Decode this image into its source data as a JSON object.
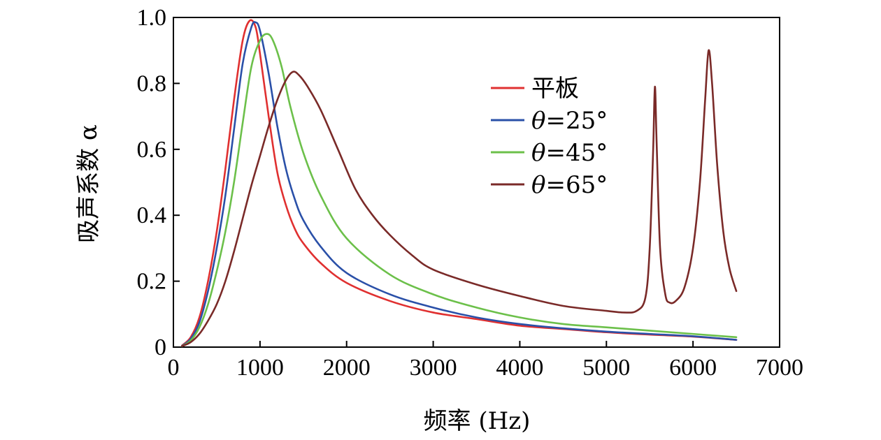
{
  "chart_data": {
    "type": "line",
    "xlabel": "频率 (Hz)",
    "ylabel": "吸声系数 α",
    "xlim": [
      0,
      7000
    ],
    "ylim": [
      0,
      1.0
    ],
    "xticks": [
      0,
      1000,
      2000,
      3000,
      4000,
      5000,
      6000,
      7000
    ],
    "xtick_labels": [
      "0",
      "1000",
      "2000",
      "3000",
      "4000",
      "5000",
      "6000",
      "7000"
    ],
    "yticks": [
      0,
      0.2,
      0.4,
      0.6,
      0.8,
      1.0
    ],
    "ytick_labels": [
      "0",
      "0.2",
      "0.4",
      "0.6",
      "0.8",
      "1.0"
    ],
    "grid": false,
    "legend_position": "top-right",
    "series": [
      {
        "name": "平板",
        "legend_label": {
          "prefix": "",
          "rest": "平板"
        },
        "color": "#e03030",
        "points": [
          [
            100,
            0.005
          ],
          [
            200,
            0.03
          ],
          [
            300,
            0.09
          ],
          [
            400,
            0.2
          ],
          [
            500,
            0.35
          ],
          [
            600,
            0.54
          ],
          [
            700,
            0.75
          ],
          [
            800,
            0.93
          ],
          [
            880,
            0.99
          ],
          [
            950,
            0.97
          ],
          [
            1000,
            0.89
          ],
          [
            1100,
            0.7
          ],
          [
            1200,
            0.53
          ],
          [
            1300,
            0.43
          ],
          [
            1400,
            0.36
          ],
          [
            1500,
            0.315
          ],
          [
            1700,
            0.255
          ],
          [
            2000,
            0.195
          ],
          [
            2500,
            0.14
          ],
          [
            3000,
            0.105
          ],
          [
            3500,
            0.085
          ],
          [
            4000,
            0.065
          ],
          [
            4500,
            0.055
          ],
          [
            5000,
            0.045
          ],
          [
            5500,
            0.038
          ],
          [
            6000,
            0.032
          ],
          [
            6500,
            0.022
          ]
        ]
      },
      {
        "name": "θ=25°",
        "legend_label": {
          "prefix": "θ",
          "rest": "=25°"
        },
        "color": "#2a50a8",
        "points": [
          [
            100,
            0.004
          ],
          [
            200,
            0.025
          ],
          [
            300,
            0.075
          ],
          [
            400,
            0.17
          ],
          [
            500,
            0.3
          ],
          [
            600,
            0.46
          ],
          [
            700,
            0.66
          ],
          [
            800,
            0.86
          ],
          [
            900,
            0.97
          ],
          [
            950,
            0.985
          ],
          [
            1000,
            0.96
          ],
          [
            1100,
            0.83
          ],
          [
            1200,
            0.67
          ],
          [
            1300,
            0.54
          ],
          [
            1400,
            0.45
          ],
          [
            1500,
            0.385
          ],
          [
            1700,
            0.305
          ],
          [
            2000,
            0.225
          ],
          [
            2500,
            0.16
          ],
          [
            3000,
            0.12
          ],
          [
            3500,
            0.09
          ],
          [
            4000,
            0.07
          ],
          [
            4500,
            0.057
          ],
          [
            5000,
            0.047
          ],
          [
            5500,
            0.04
          ],
          [
            6000,
            0.033
          ],
          [
            6500,
            0.022
          ]
        ]
      },
      {
        "name": "θ=45°",
        "legend_label": {
          "prefix": "θ",
          "rest": "=45°"
        },
        "color": "#6cc04a",
        "points": [
          [
            100,
            0.003
          ],
          [
            200,
            0.02
          ],
          [
            300,
            0.06
          ],
          [
            400,
            0.13
          ],
          [
            500,
            0.23
          ],
          [
            600,
            0.35
          ],
          [
            700,
            0.5
          ],
          [
            800,
            0.68
          ],
          [
            900,
            0.85
          ],
          [
            1000,
            0.93
          ],
          [
            1080,
            0.95
          ],
          [
            1150,
            0.93
          ],
          [
            1250,
            0.85
          ],
          [
            1350,
            0.73
          ],
          [
            1500,
            0.59
          ],
          [
            1700,
            0.46
          ],
          [
            2000,
            0.33
          ],
          [
            2500,
            0.22
          ],
          [
            3000,
            0.16
          ],
          [
            3500,
            0.12
          ],
          [
            4000,
            0.09
          ],
          [
            4500,
            0.07
          ],
          [
            5000,
            0.06
          ],
          [
            5500,
            0.05
          ],
          [
            6000,
            0.04
          ],
          [
            6500,
            0.03
          ]
        ]
      },
      {
        "name": "θ=65°",
        "legend_label": {
          "prefix": "θ",
          "rest": "=65°"
        },
        "color": "#7a2a28",
        "points": [
          [
            100,
            0.003
          ],
          [
            200,
            0.015
          ],
          [
            300,
            0.04
          ],
          [
            400,
            0.08
          ],
          [
            500,
            0.13
          ],
          [
            600,
            0.2
          ],
          [
            700,
            0.29
          ],
          [
            800,
            0.39
          ],
          [
            900,
            0.49
          ],
          [
            1000,
            0.58
          ],
          [
            1100,
            0.67
          ],
          [
            1200,
            0.75
          ],
          [
            1300,
            0.81
          ],
          [
            1380,
            0.835
          ],
          [
            1450,
            0.825
          ],
          [
            1550,
            0.79
          ],
          [
            1700,
            0.72
          ],
          [
            1900,
            0.6
          ],
          [
            2100,
            0.48
          ],
          [
            2300,
            0.4
          ],
          [
            2500,
            0.34
          ],
          [
            2750,
            0.28
          ],
          [
            3000,
            0.235
          ],
          [
            3500,
            0.19
          ],
          [
            4000,
            0.155
          ],
          [
            4500,
            0.125
          ],
          [
            5000,
            0.11
          ],
          [
            5200,
            0.105
          ],
          [
            5350,
            0.11
          ],
          [
            5450,
            0.15
          ],
          [
            5500,
            0.3
          ],
          [
            5540,
            0.6
          ],
          [
            5560,
            0.79
          ],
          [
            5580,
            0.62
          ],
          [
            5620,
            0.3
          ],
          [
            5680,
            0.16
          ],
          [
            5730,
            0.135
          ],
          [
            5800,
            0.14
          ],
          [
            5900,
            0.18
          ],
          [
            6000,
            0.3
          ],
          [
            6080,
            0.5
          ],
          [
            6140,
            0.75
          ],
          [
            6180,
            0.9
          ],
          [
            6220,
            0.8
          ],
          [
            6280,
            0.55
          ],
          [
            6350,
            0.35
          ],
          [
            6420,
            0.24
          ],
          [
            6500,
            0.17
          ]
        ]
      }
    ]
  }
}
